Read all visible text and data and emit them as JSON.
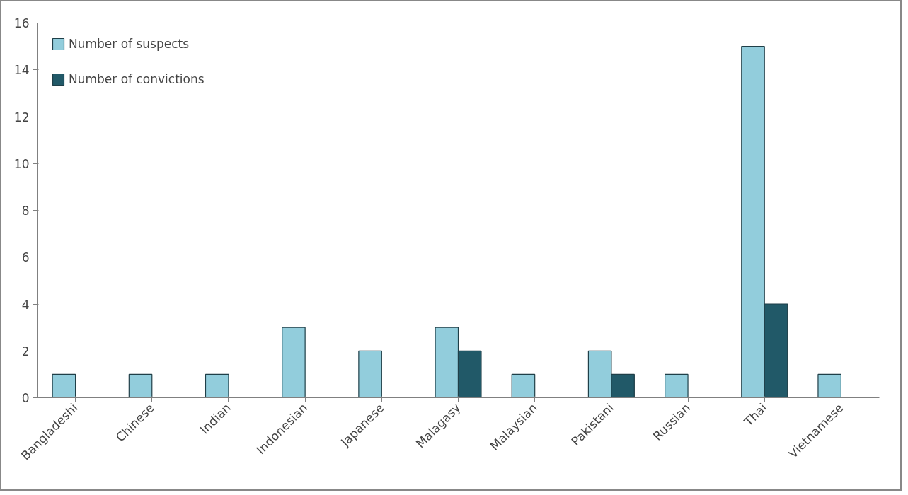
{
  "chart_data": {
    "type": "bar",
    "categories": [
      "Bangladeshi",
      "Chinese",
      "Indian",
      "Indonesian",
      "Japanese",
      "Malagasy",
      "Malaysian",
      "Pakistani",
      "Russian",
      "Thai",
      "Vietnamese"
    ],
    "series": [
      {
        "name": "Number of suspects",
        "color": "#92cddc",
        "values": [
          1,
          1,
          1,
          3,
          2,
          3,
          1,
          2,
          1,
          15,
          1
        ]
      },
      {
        "name": "Number of convictions",
        "color": "#215968",
        "values": [
          null,
          null,
          null,
          null,
          null,
          2,
          null,
          1,
          null,
          4,
          null
        ]
      }
    ],
    "ylim": [
      0,
      16
    ],
    "yticks": [
      0,
      2,
      4,
      6,
      8,
      10,
      12,
      14,
      16
    ],
    "grid": false,
    "legend": "top left"
  }
}
